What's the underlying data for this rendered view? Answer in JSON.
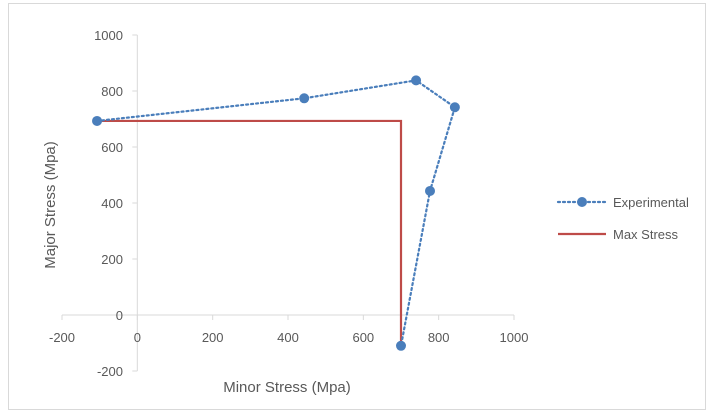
{
  "chart_data": {
    "type": "line",
    "title": "",
    "xlabel": "Minor Stress (Mpa)",
    "ylabel": "Major Stress (Mpa)",
    "xlim": [
      -200,
      1000
    ],
    "ylim": [
      -200,
      1000
    ],
    "x_ticks": [
      -200,
      0,
      200,
      400,
      600,
      800,
      1000
    ],
    "y_ticks": [
      -200,
      0,
      200,
      400,
      600,
      800,
      1000
    ],
    "grid": false,
    "legend_position": "right",
    "series": [
      {
        "name": "Experimental",
        "style": "dotted-line-with-markers",
        "color": "#4a7ebb",
        "points": [
          [
            -107,
            693
          ],
          [
            443,
            774
          ],
          [
            740,
            838
          ],
          [
            843,
            742
          ],
          [
            777,
            443
          ],
          [
            700,
            -110
          ]
        ]
      },
      {
        "name": "Max Stress",
        "style": "solid-line",
        "color": "#be4b48",
        "points": [
          [
            -107,
            693
          ],
          [
            700,
            693
          ],
          [
            700,
            -110
          ]
        ]
      }
    ]
  }
}
